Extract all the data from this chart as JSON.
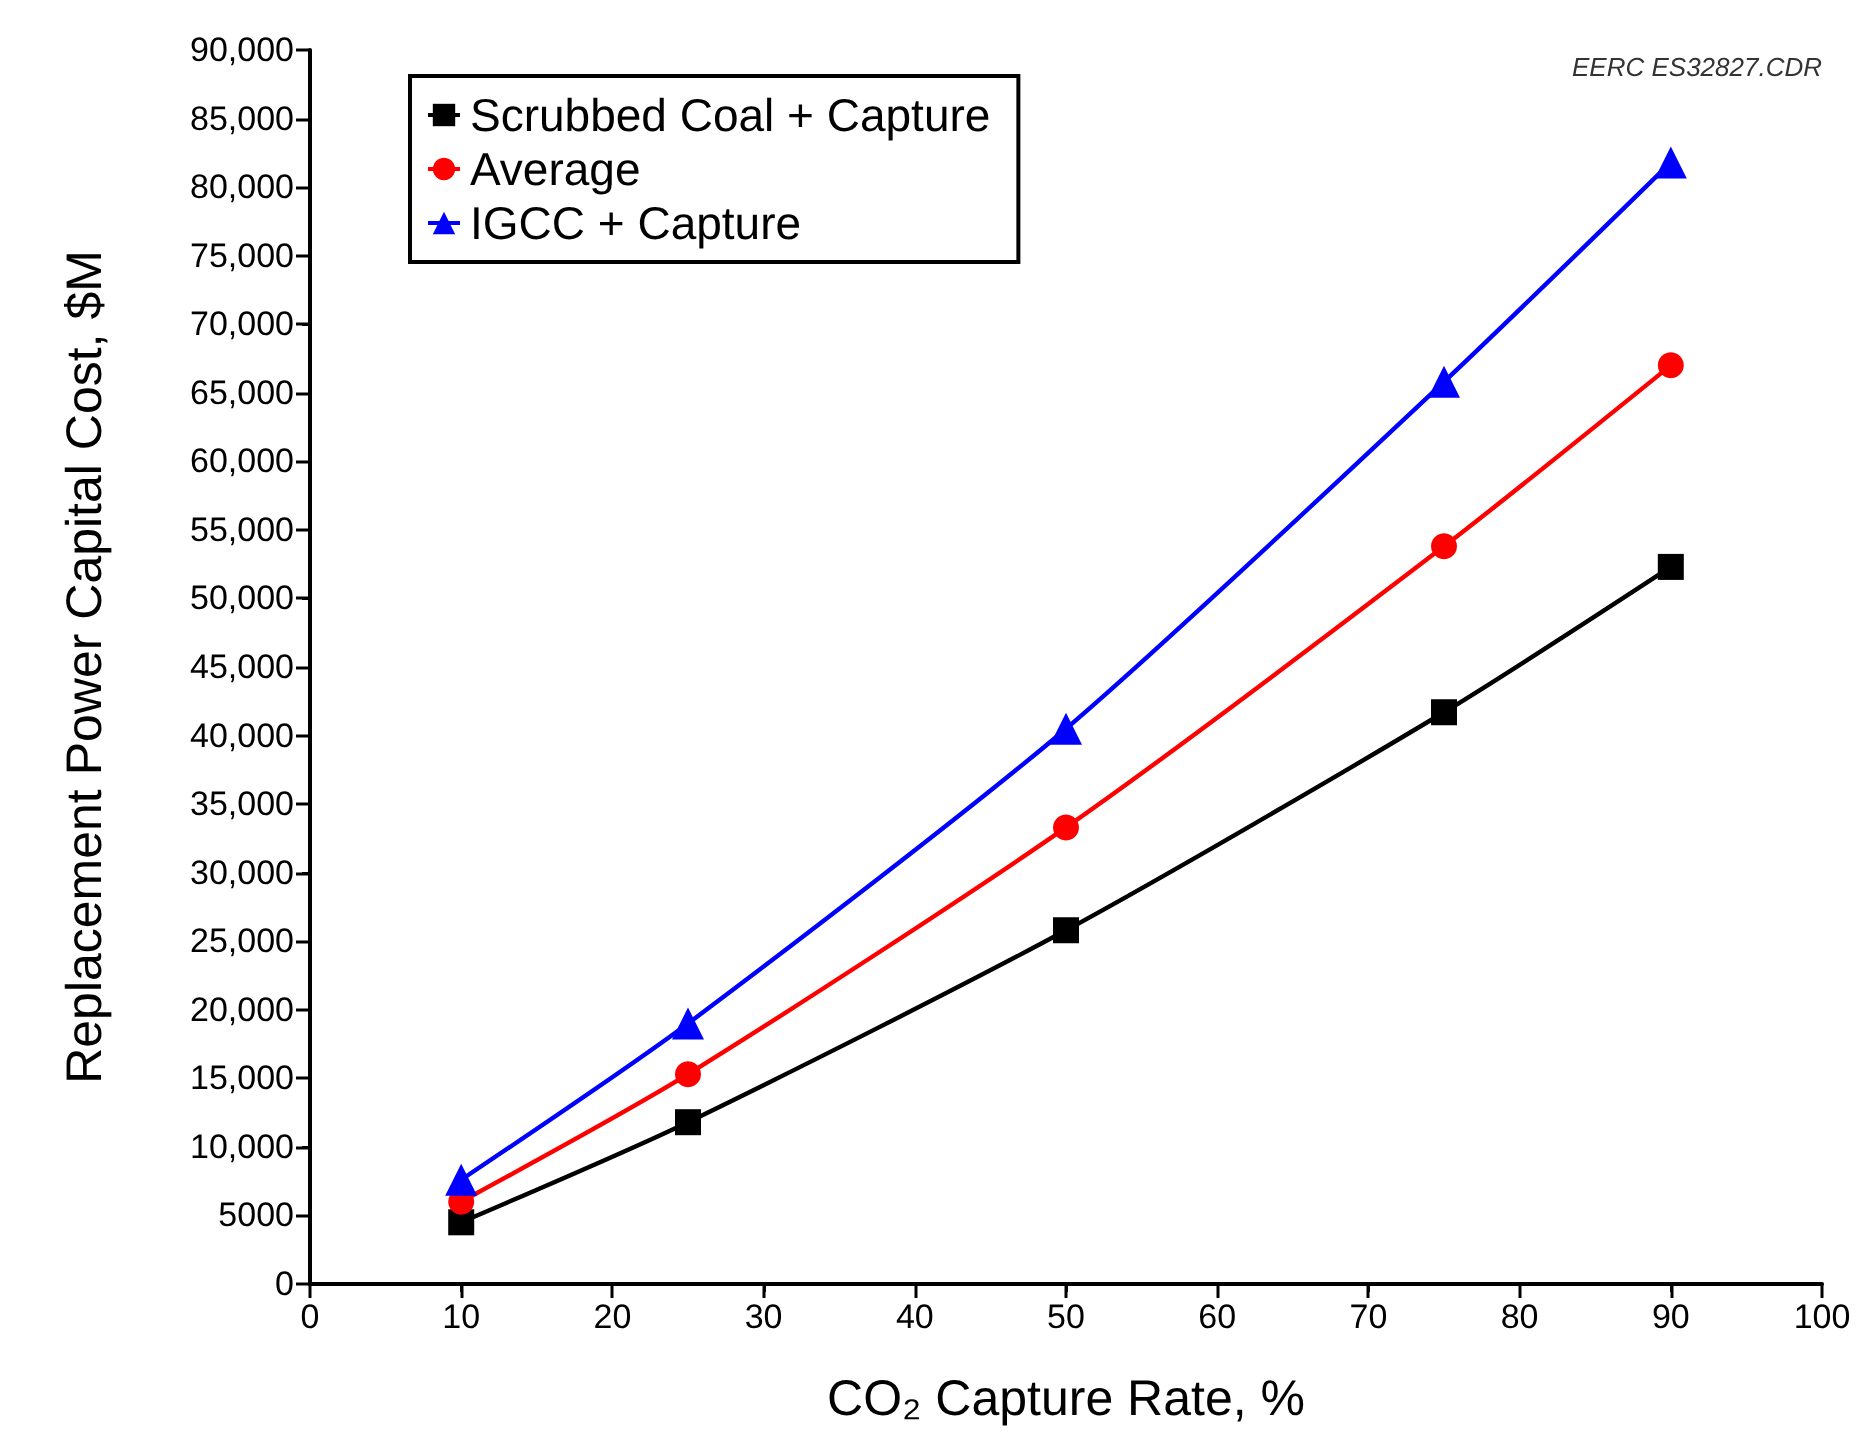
{
  "chart_data": {
    "type": "line",
    "xlabel": "CO₂ Capture Rate, %",
    "ylabel": "Replacement Power Capital Cost, $M",
    "annotations": [
      "EERC ES32827.CDR"
    ],
    "x": [
      10,
      25,
      50,
      75,
      90
    ],
    "series": [
      {
        "name": "Scrubbed Coal + Capture",
        "color": "#000000",
        "marker": "square",
        "values": [
          4500,
          11800,
          25800,
          41700,
          52300
        ]
      },
      {
        "name": "Average",
        "color": "#ff0000",
        "marker": "circle",
        "values": [
          6000,
          15300,
          33300,
          53800,
          67000
        ]
      },
      {
        "name": "IGCC + Capture",
        "color": "#0000ff",
        "marker": "triangle",
        "values": [
          7600,
          19000,
          40500,
          65800,
          81800
        ]
      }
    ],
    "xlim": [
      0,
      100
    ],
    "xticks": [
      0,
      10,
      20,
      30,
      40,
      50,
      60,
      70,
      80,
      90,
      100
    ],
    "ylim": [
      0,
      90000
    ],
    "yticks": [
      0,
      5000,
      {
        "value": 10000,
        "label": "10,000"
      },
      {
        "value": 15000,
        "label": "15,000"
      },
      {
        "value": 20000,
        "label": "20,000"
      },
      {
        "value": 25000,
        "label": "25,000"
      },
      {
        "value": 30000,
        "label": "30,000"
      },
      {
        "value": 35000,
        "label": "35,000"
      },
      {
        "value": 40000,
        "label": "40,000"
      },
      {
        "value": 45000,
        "label": "45,000"
      },
      {
        "value": 50000,
        "label": "50,000"
      },
      {
        "value": 55000,
        "label": "55,000"
      },
      {
        "value": 60000,
        "label": "60,000"
      },
      {
        "value": 65000,
        "label": "65,000"
      },
      {
        "value": 70000,
        "label": "70,000"
      },
      {
        "value": 75000,
        "label": "75,000"
      },
      {
        "value": 80000,
        "label": "80,000"
      },
      {
        "value": 85000,
        "label": "85,000"
      },
      {
        "value": 90000,
        "label": "90,000"
      }
    ],
    "grid": false,
    "legend": "top left",
    "line_style": "solid"
  }
}
